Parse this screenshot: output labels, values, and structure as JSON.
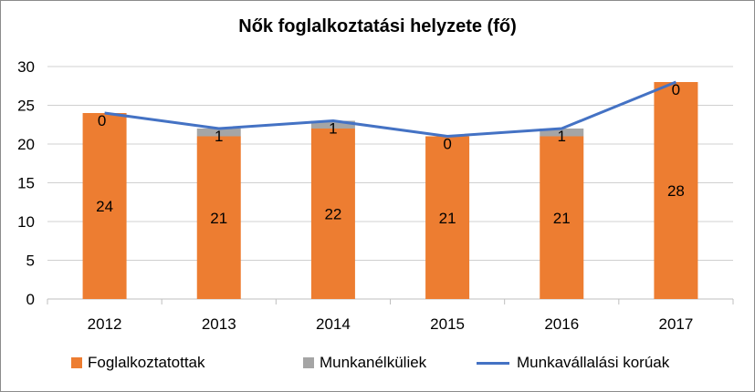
{
  "chart_data": {
    "type": "bar",
    "title": "Nők foglalkoztatási helyzete (fő)",
    "categories": [
      "2012",
      "2013",
      "2014",
      "2015",
      "2016",
      "2017"
    ],
    "series": [
      {
        "name": "Foglalkoztatottak",
        "kind": "bar",
        "color": "#ED7D31",
        "values": [
          24,
          21,
          22,
          21,
          21,
          28
        ]
      },
      {
        "name": "Munkanélküliek",
        "kind": "bar",
        "color": "#A5A5A5",
        "values": [
          0,
          1,
          1,
          0,
          1,
          0
        ]
      },
      {
        "name": "Munkavállalási korúak",
        "kind": "line",
        "color": "#4472C4",
        "values": [
          24,
          22,
          23,
          21,
          22,
          28
        ]
      }
    ],
    "stacked": true,
    "ylim": [
      0,
      30
    ],
    "yticks": [
      "0",
      "5",
      "10",
      "15",
      "20",
      "25",
      "30"
    ],
    "grid": true,
    "legend_position": "bottom"
  }
}
